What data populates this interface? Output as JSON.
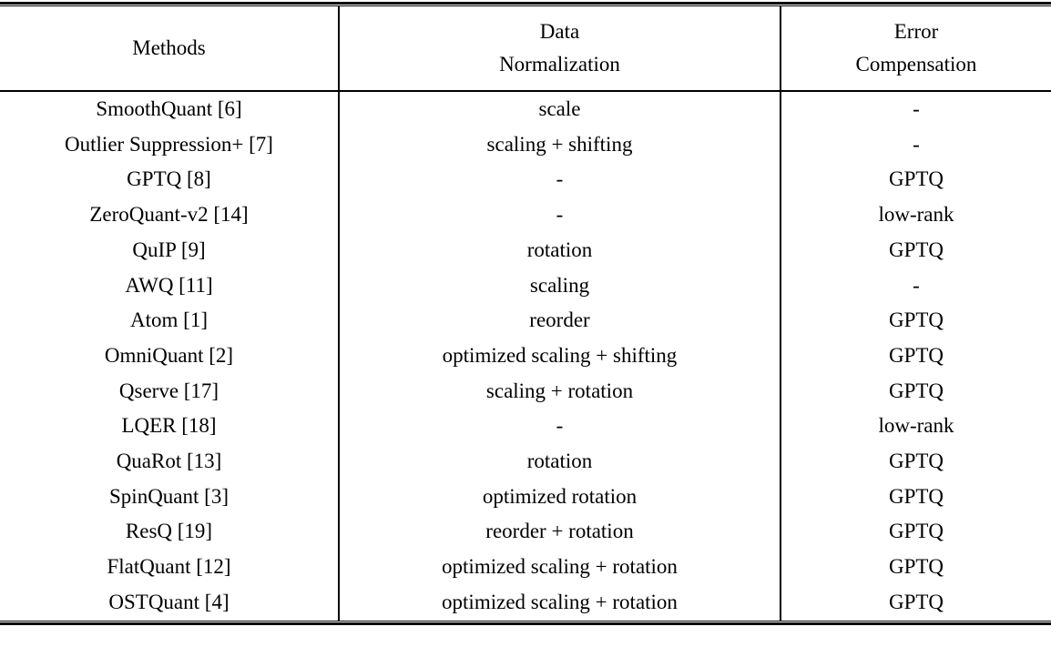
{
  "table": {
    "columns": [
      {
        "label": "Methods"
      },
      {
        "label": "Data\nNormalization"
      },
      {
        "label": "Error\nCompensation"
      }
    ],
    "rows": [
      {
        "method": "SmoothQuant [6]",
        "data_normalization": "scale",
        "error_compensation": "-"
      },
      {
        "method": "Outlier Suppression+ [7]",
        "data_normalization": "scaling + shifting",
        "error_compensation": "-"
      },
      {
        "method": "GPTQ [8]",
        "data_normalization": "-",
        "error_compensation": "GPTQ"
      },
      {
        "method": "ZeroQuant-v2 [14]",
        "data_normalization": "-",
        "error_compensation": "low-rank"
      },
      {
        "method": "QuIP [9]",
        "data_normalization": "rotation",
        "error_compensation": "GPTQ"
      },
      {
        "method": "AWQ [11]",
        "data_normalization": "scaling",
        "error_compensation": "-"
      },
      {
        "method": "Atom [1]",
        "data_normalization": "reorder",
        "error_compensation": "GPTQ"
      },
      {
        "method": "OmniQuant [2]",
        "data_normalization": "optimized scaling + shifting",
        "error_compensation": "GPTQ"
      },
      {
        "method": "Qserve [17]",
        "data_normalization": "scaling + rotation",
        "error_compensation": "GPTQ"
      },
      {
        "method": "LQER [18]",
        "data_normalization": "-",
        "error_compensation": "low-rank"
      },
      {
        "method": "QuaRot [13]",
        "data_normalization": "rotation",
        "error_compensation": "GPTQ"
      },
      {
        "method": "SpinQuant [3]",
        "data_normalization": "optimized rotation",
        "error_compensation": "GPTQ"
      },
      {
        "method": "ResQ [19]",
        "data_normalization": "reorder + rotation",
        "error_compensation": "GPTQ"
      },
      {
        "method": "FlatQuant [12]",
        "data_normalization": "optimized scaling + rotation",
        "error_compensation": "GPTQ"
      },
      {
        "method": "OSTQuant [4]",
        "data_normalization": "optimized scaling + rotation",
        "error_compensation": "GPTQ"
      }
    ],
    "colors": {
      "text": "#000000",
      "rule": "#000000",
      "background": "#ffffff"
    }
  }
}
